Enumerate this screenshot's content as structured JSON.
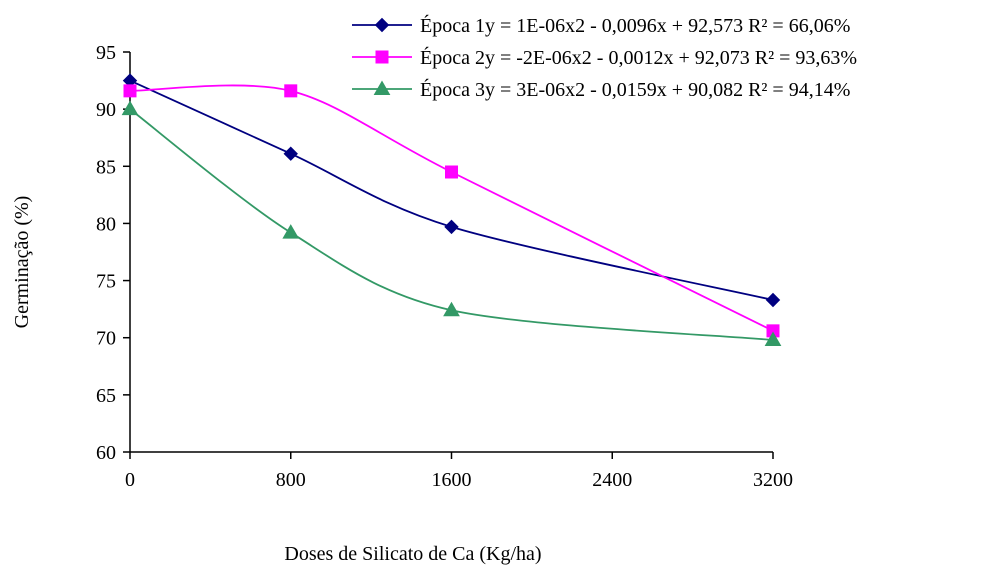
{
  "chart_data": {
    "type": "line",
    "xlabel": "Doses de Silicato de Ca (Kg/ha)",
    "ylabel": "Germinação (%)",
    "x": [
      0,
      800,
      1600,
      3200
    ],
    "xticks": [
      "0",
      "800",
      "1600",
      "2400",
      "3200"
    ],
    "yticks": [
      "60",
      "65",
      "70",
      "75",
      "80",
      "85",
      "90",
      "95"
    ],
    "xlim": [
      0,
      3200
    ],
    "ylim": [
      60,
      95
    ],
    "grid": false,
    "legend_position": "top-right",
    "series": [
      {
        "name": "Época 1",
        "equation": "y = 1E-06x2 - 0,0096x + 92,573 R² = 66,06%",
        "values": [
          92.5,
          86.1,
          79.7,
          73.3
        ],
        "fit": [
          1e-06,
          -0.0096,
          92.573
        ],
        "color": "#000080",
        "marker": "diamond"
      },
      {
        "name": "Época 2",
        "equation": "y = -2E-06x2 - 0,0012x + 92,073 R² = 93,63%",
        "values": [
          91.6,
          91.6,
          84.5,
          70.6
        ],
        "fit": [
          -2e-06,
          -0.0012,
          92.073
        ],
        "color": "#FF00FF",
        "marker": "square"
      },
      {
        "name": "Época 3",
        "equation": "y = 3E-06x2 - 0,0159x + 90,082 R² = 94,14%",
        "values": [
          90.0,
          79.2,
          72.4,
          69.8
        ],
        "fit": [
          3e-06,
          -0.0159,
          90.082
        ],
        "color": "#339966",
        "marker": "triangle"
      }
    ]
  }
}
